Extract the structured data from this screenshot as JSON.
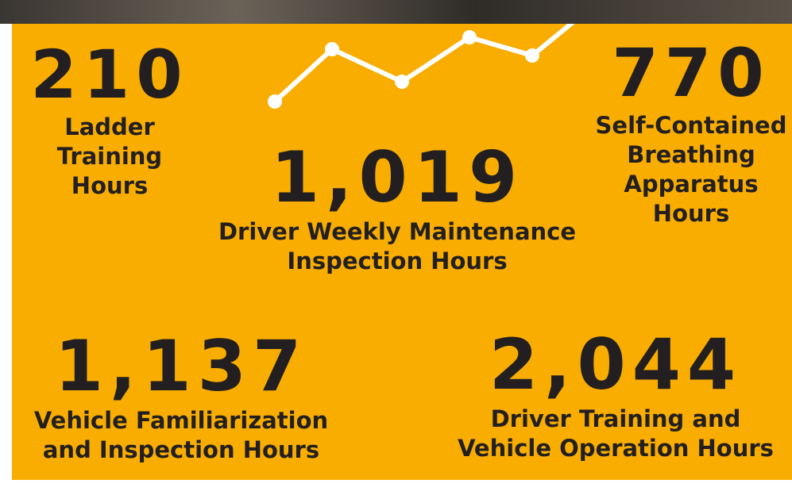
{
  "stats": [
    {
      "number": "210",
      "label_lines": [
        "Ladder",
        "Training",
        "Hours"
      ]
    },
    {
      "number": "770",
      "label_lines": [
        "Self-Contained",
        "Breathing",
        "Apparatus",
        "Hours"
      ]
    },
    {
      "number": "1,019",
      "label_lines": [
        "Driver Weekly Maintenance",
        "Inspection Hours"
      ]
    },
    {
      "number": "1,137",
      "label_lines": [
        "Vehicle Familiarization",
        "and Inspection Hours"
      ]
    },
    {
      "number": "2,044",
      "label_lines": [
        "Driver Training and",
        "Vehicle Operation Hours"
      ]
    }
  ]
}
